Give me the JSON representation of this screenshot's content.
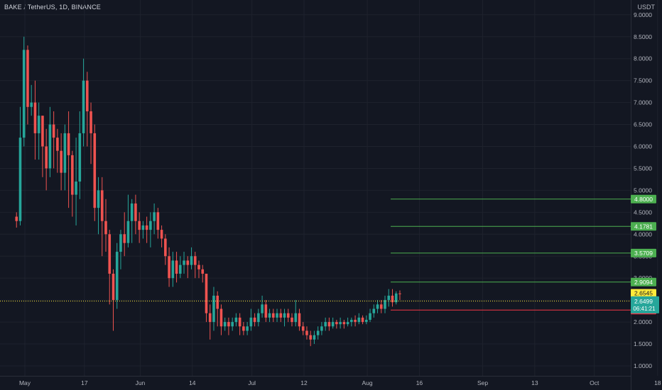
{
  "header": {
    "title": "BAKE / TetherUS, 1D, BINANCE",
    "unit": "USDT"
  },
  "colors": {
    "background": "#131722",
    "grid": "#1e222d",
    "up": "#26a69a",
    "down": "#ef5350",
    "level_green": "#4caf50",
    "level_red": "#f23645",
    "level_yellow": "#ffeb3b",
    "axis_text": "#b2b5be"
  },
  "chart_data": {
    "type": "candlestick",
    "symbol": "BAKE / TetherUS",
    "interval": "1D",
    "exchange": "BINANCE",
    "y_ticks": [
      "9.0000",
      "8.5000",
      "8.0000",
      "7.5000",
      "7.0000",
      "6.5000",
      "6.0000",
      "5.5000",
      "5.0000",
      "4.5000",
      "4.0000",
      "3.5000",
      "3.0000",
      "2.5000",
      "2.0000",
      "1.5000",
      "1.0000"
    ],
    "x_ticks": [
      "May",
      "17",
      "Jun",
      "14",
      "Jul",
      "12",
      "Aug",
      "16",
      "Sep",
      "13",
      "Oct",
      "18"
    ],
    "x_tick_days": [
      0,
      16,
      31,
      45,
      61,
      75,
      92,
      106,
      123,
      137,
      153,
      170
    ],
    "ylim": [
      0.65,
      9.3
    ],
    "candles": [
      [
        1,
        4.4,
        4.3,
        4.15,
        4.5
      ],
      [
        2,
        4.3,
        6.2,
        4.2,
        6.9
      ],
      [
        3,
        6.2,
        8.2,
        6.0,
        8.5
      ],
      [
        4,
        8.2,
        6.9,
        6.5,
        8.3
      ],
      [
        5,
        6.9,
        7.0,
        6.7,
        7.4
      ],
      [
        6,
        7.0,
        6.3,
        5.7,
        7.5
      ],
      [
        7,
        6.3,
        6.7,
        5.7,
        7.0
      ],
      [
        8,
        6.7,
        6.0,
        5.3,
        6.7
      ],
      [
        9,
        6.0,
        5.5,
        5.0,
        6.4
      ],
      [
        10,
        5.5,
        6.5,
        5.3,
        6.9
      ],
      [
        11,
        6.5,
        6.2,
        5.5,
        6.8
      ],
      [
        12,
        6.2,
        5.9,
        5.4,
        6.4
      ],
      [
        13,
        5.9,
        5.4,
        5.0,
        6.3
      ],
      [
        14,
        5.4,
        6.3,
        5.0,
        6.5
      ],
      [
        15,
        6.3,
        5.8,
        4.6,
        6.8
      ],
      [
        16,
        5.8,
        4.9,
        4.4,
        5.9
      ],
      [
        17,
        4.9,
        5.2,
        4.2,
        6.2
      ],
      [
        18,
        5.2,
        6.3,
        4.8,
        6.8
      ],
      [
        19,
        6.3,
        7.5,
        6.0,
        8.0
      ],
      [
        20,
        7.5,
        6.8,
        6.0,
        7.7
      ],
      [
        21,
        6.8,
        6.3,
        5.6,
        7.0
      ],
      [
        22,
        6.3,
        4.6,
        4.3,
        6.5
      ],
      [
        23,
        4.6,
        5.0,
        4.0,
        5.3
      ],
      [
        24,
        5.0,
        4.3,
        3.5,
        5.3
      ],
      [
        25,
        4.3,
        4.0,
        3.6,
        4.8
      ],
      [
        26,
        4.0,
        3.1,
        2.4,
        4.1
      ],
      [
        27,
        3.1,
        2.5,
        1.8,
        3.2
      ],
      [
        28,
        2.5,
        3.6,
        2.3,
        3.8
      ],
      [
        29,
        3.6,
        4.0,
        3.2,
        4.1
      ],
      [
        30,
        4.0,
        3.8,
        3.5,
        4.5
      ],
      [
        31,
        3.8,
        4.3,
        3.7,
        4.9
      ],
      [
        32,
        4.3,
        4.7,
        3.8,
        4.8
      ],
      [
        33,
        4.7,
        4.3,
        4.0,
        4.9
      ],
      [
        34,
        4.3,
        4.1,
        3.8,
        4.5
      ],
      [
        35,
        4.1,
        4.2,
        3.9,
        4.3
      ],
      [
        36,
        4.2,
        4.1,
        3.8,
        4.4
      ],
      [
        37,
        4.1,
        4.3,
        3.7,
        4.5
      ],
      [
        38,
        4.3,
        4.5,
        4.0,
        4.7
      ],
      [
        39,
        4.5,
        4.1,
        3.9,
        4.6
      ],
      [
        40,
        4.1,
        3.9,
        3.7,
        4.2
      ],
      [
        41,
        3.9,
        3.5,
        3.3,
        4.0
      ],
      [
        42,
        3.5,
        3.0,
        2.8,
        3.7
      ],
      [
        43,
        3.0,
        3.4,
        2.8,
        3.6
      ],
      [
        44,
        3.4,
        3.1,
        2.9,
        3.6
      ],
      [
        45,
        3.1,
        3.3,
        3.0,
        3.5
      ],
      [
        46,
        3.3,
        3.4,
        3.1,
        3.6
      ],
      [
        47,
        3.4,
        3.3,
        3.0,
        3.5
      ],
      [
        48,
        3.3,
        3.5,
        3.2,
        3.7
      ],
      [
        49,
        3.5,
        3.3,
        3.0,
        3.6
      ],
      [
        50,
        3.3,
        3.2,
        3.0,
        3.4
      ],
      [
        51,
        3.2,
        3.1,
        2.9,
        3.3
      ],
      [
        52,
        3.1,
        2.2,
        2.0,
        3.1
      ],
      [
        53,
        2.2,
        2.0,
        1.6,
        2.4
      ],
      [
        54,
        2.0,
        2.6,
        1.8,
        2.8
      ],
      [
        55,
        2.6,
        2.3,
        1.9,
        2.7
      ],
      [
        56,
        2.3,
        1.9,
        1.7,
        2.4
      ],
      [
        57,
        1.9,
        2.0,
        1.8,
        2.1
      ],
      [
        58,
        2.0,
        1.9,
        1.7,
        2.1
      ],
      [
        59,
        1.9,
        2.0,
        1.8,
        2.1
      ],
      [
        60,
        2.0,
        2.1,
        1.9,
        2.2
      ],
      [
        61,
        2.1,
        1.9,
        1.7,
        2.2
      ],
      [
        62,
        1.9,
        1.8,
        1.7,
        2.0
      ],
      [
        63,
        1.8,
        1.9,
        1.7,
        2.0
      ],
      [
        64,
        1.9,
        2.1,
        1.8,
        2.3
      ],
      [
        65,
        2.1,
        2.0,
        1.9,
        2.2
      ],
      [
        66,
        2.0,
        2.2,
        1.9,
        2.3
      ],
      [
        67,
        2.2,
        2.4,
        2.1,
        2.6
      ],
      [
        68,
        2.4,
        2.1,
        2.0,
        2.5
      ],
      [
        69,
        2.1,
        2.2,
        2.0,
        2.3
      ],
      [
        70,
        2.2,
        2.1,
        2.0,
        2.3
      ],
      [
        71,
        2.1,
        2.2,
        2.0,
        2.3
      ],
      [
        72,
        2.2,
        2.1,
        2.0,
        2.3
      ],
      [
        73,
        2.1,
        2.2,
        1.9,
        2.3
      ],
      [
        74,
        2.2,
        2.1,
        2.0,
        2.3
      ],
      [
        75,
        2.1,
        2.0,
        1.9,
        2.2
      ],
      [
        76,
        2.0,
        2.2,
        1.9,
        2.5
      ],
      [
        77,
        2.2,
        1.9,
        1.8,
        2.3
      ],
      [
        78,
        1.9,
        1.8,
        1.7,
        2.0
      ],
      [
        79,
        1.8,
        1.7,
        1.6,
        1.9
      ],
      [
        80,
        1.7,
        1.6,
        1.45,
        1.8
      ],
      [
        81,
        1.6,
        1.7,
        1.5,
        1.8
      ],
      [
        82,
        1.7,
        1.8,
        1.6,
        1.9
      ],
      [
        83,
        1.8,
        1.9,
        1.7,
        2.0
      ],
      [
        84,
        1.9,
        2.0,
        1.8,
        2.1
      ],
      [
        85,
        2.0,
        1.9,
        1.8,
        2.1
      ],
      [
        86,
        1.9,
        2.0,
        1.85,
        2.1
      ],
      [
        87,
        2.0,
        1.95,
        1.85,
        2.05
      ],
      [
        88,
        1.95,
        2.0,
        1.85,
        2.1
      ],
      [
        89,
        2.0,
        1.95,
        1.85,
        2.05
      ],
      [
        90,
        1.95,
        2.0,
        1.9,
        2.1
      ],
      [
        91,
        2.0,
        2.05,
        1.9,
        2.1
      ],
      [
        92,
        2.05,
        2.0,
        1.9,
        2.15
      ],
      [
        93,
        2.0,
        2.1,
        1.95,
        2.2
      ],
      [
        94,
        2.1,
        2.0,
        1.95,
        2.15
      ],
      [
        95,
        2.0,
        2.05,
        1.95,
        2.15
      ],
      [
        96,
        2.05,
        2.2,
        2.0,
        2.3
      ],
      [
        97,
        2.2,
        2.3,
        2.1,
        2.4
      ],
      [
        98,
        2.3,
        2.4,
        2.2,
        2.5
      ],
      [
        99,
        2.4,
        2.3,
        2.2,
        2.5
      ],
      [
        100,
        2.3,
        2.5,
        2.2,
        2.6
      ],
      [
        101,
        2.5,
        2.6,
        2.35,
        2.75
      ],
      [
        102,
        2.6,
        2.45,
        2.35,
        2.75
      ],
      [
        103,
        2.45,
        2.65,
        2.4,
        2.7
      ],
      [
        104,
        2.65,
        2.6499,
        2.5,
        2.72
      ]
    ],
    "horizontal_levels": [
      {
        "label": "4.8000",
        "value": 4.8,
        "color": "#4caf50"
      },
      {
        "label": "4.1781",
        "value": 4.1781,
        "color": "#4caf50"
      },
      {
        "label": "3.5709",
        "value": 3.5709,
        "color": "#4caf50"
      },
      {
        "label": "2.9094",
        "value": 2.9094,
        "color": "#4caf50"
      },
      {
        "label": "2.2713",
        "value": 2.2713,
        "color": "#f23645"
      }
    ],
    "yellow_level": {
      "label": "2.6545",
      "value": 2.6545
    },
    "last_price": {
      "label": "2.6499",
      "value": 2.6499,
      "countdown": "06:41:21"
    }
  }
}
